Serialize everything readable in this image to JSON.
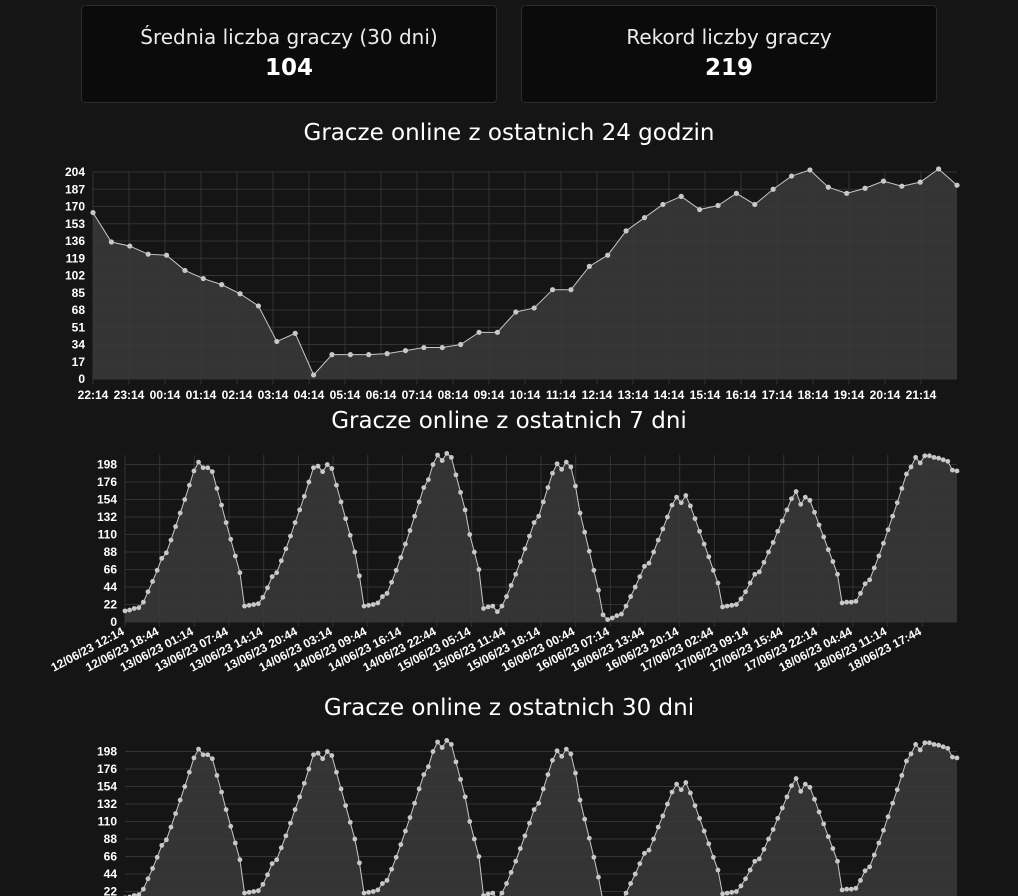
{
  "cards": [
    {
      "label": "Średnia liczba graczy (30 dni)",
      "value": "104"
    },
    {
      "label": "Rekord liczby graczy",
      "value": "219"
    }
  ],
  "colors": {
    "background": "#151515",
    "card": "#0b0b0b",
    "line": "#c8c8c8",
    "area": "#3a3a3a",
    "grid": "#333333"
  },
  "chart_data": [
    {
      "type": "area",
      "title": "Gracze online z ostatnich 24 godzin",
      "ylim": [
        0,
        204
      ],
      "yticks": [
        0,
        17,
        34,
        51,
        68,
        85,
        102,
        119,
        136,
        153,
        170,
        187,
        204
      ],
      "xticks": [
        "22:14",
        "23:14",
        "00:14",
        "01:14",
        "02:14",
        "03:14",
        "04:14",
        "05:14",
        "06:14",
        "07:14",
        "08:14",
        "09:14",
        "10:14",
        "11:14",
        "12:14",
        "13:14",
        "14:14",
        "15:14",
        "16:14",
        "17:14",
        "18:14",
        "19:14",
        "20:14",
        "21:14"
      ],
      "grid": true,
      "x": [
        0,
        0.5,
        1,
        1.5,
        2,
        2.5,
        3,
        3.5,
        4,
        4.5,
        5,
        5.5,
        6,
        6.5,
        7,
        7.5,
        8,
        8.5,
        9,
        9.5,
        10,
        10.5,
        11,
        11.5,
        12,
        12.5,
        13,
        13.5,
        14,
        14.5,
        15,
        15.5,
        16,
        16.5,
        17,
        17.5,
        18,
        18.5,
        19,
        19.5,
        20,
        20.5,
        21,
        21.5,
        22,
        22.5,
        23,
        23.5
      ],
      "values": [
        164,
        135,
        131,
        123,
        122,
        107,
        99,
        93,
        84,
        72,
        37,
        45,
        4,
        24,
        24,
        24,
        25,
        28,
        31,
        31,
        34,
        46,
        46,
        66,
        70,
        88,
        88,
        111,
        122,
        146,
        159,
        172,
        180,
        167,
        171,
        183,
        172,
        187,
        200,
        206,
        189,
        183,
        188,
        195,
        190,
        194,
        207,
        191
      ]
    },
    {
      "type": "scatter",
      "title": "Gracze online z ostatnich 7 dni",
      "ylim": [
        0,
        210
      ],
      "yticks": [
        0,
        22,
        44,
        66,
        88,
        110,
        132,
        154,
        176,
        198
      ],
      "xticks": [
        "12/06/23 12:14",
        "12/06/23 18:44",
        "13/06/23 01:14",
        "13/06/23 07:44",
        "13/06/23 14:14",
        "13/06/23 20:44",
        "14/06/23 03:14",
        "14/06/23 09:44",
        "14/06/23 16:14",
        "14/06/23 22:44",
        "15/06/23 05:14",
        "15/06/23 11:44",
        "15/06/23 18:14",
        "16/06/23 00:44",
        "16/06/23 07:14",
        "16/06/23 13:44",
        "16/06/23 20:14",
        "17/06/23 02:44",
        "17/06/23 09:14",
        "17/06/23 15:44",
        "17/06/23 22:14",
        "18/06/23 04:44",
        "18/06/23 11:14",
        "18/06/23 17:44"
      ],
      "grid": true,
      "x_step_hours": 6.5,
      "days": [
        {
          "min": 18,
          "peak": 198,
          "tail": 37
        },
        {
          "min": 22,
          "peak": 200,
          "tail": 40
        },
        {
          "min": 20,
          "peak": 212,
          "tail": 45
        },
        {
          "min": 15,
          "peak": 199,
          "tail": 15
        },
        {
          "min": 5,
          "peak": 155,
          "tail": 30
        },
        {
          "min": 22,
          "peak": 160,
          "tail": 40
        },
        {
          "min": 25,
          "peak": 210,
          "tail": 190
        }
      ]
    },
    {
      "type": "scatter",
      "title": "Gracze online z ostatnich 30 dni",
      "ylim": [
        0,
        210
      ],
      "yticks": [
        22,
        44,
        66,
        88,
        110,
        132,
        154,
        176,
        198
      ],
      "grid": true
    }
  ]
}
